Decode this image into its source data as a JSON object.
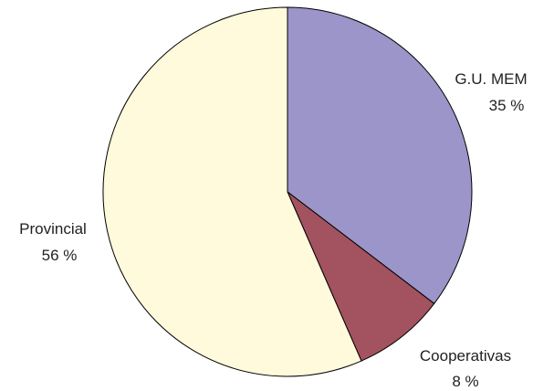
{
  "chart_data": {
    "type": "pie",
    "start_angle_deg": 0,
    "direction": "clockwise",
    "slices": [
      {
        "label": "G.U. MEM",
        "value": 35,
        "value_text": "35 %",
        "color": "#9b95c9"
      },
      {
        "label": "Cooperativas",
        "value": 8,
        "value_text": "8 %",
        "color": "#a3525f"
      },
      {
        "label": "Provincial",
        "value": 56,
        "value_text": "56 %",
        "color": "#fffadb"
      }
    ]
  }
}
